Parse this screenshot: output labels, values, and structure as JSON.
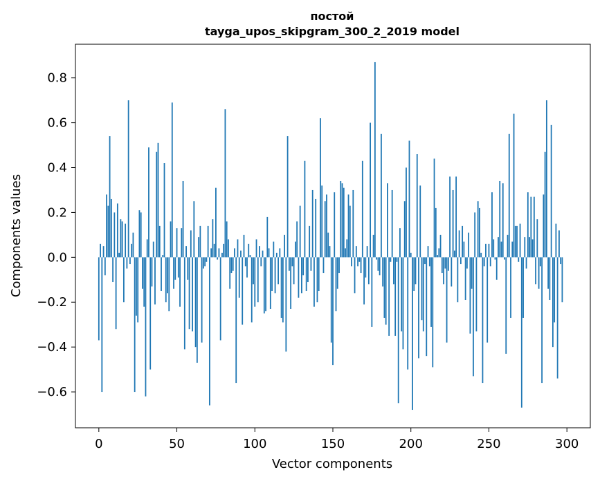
{
  "chart_data": {
    "type": "bar",
    "title": "постой",
    "subtitle": "tayga_upos_skipgram_300_2_2019 model",
    "xlabel": "Vector components",
    "ylabel": "Components values",
    "xlim": [
      -15,
      315
    ],
    "ylim": [
      -0.76,
      0.95
    ],
    "xticks": [
      0,
      50,
      100,
      150,
      200,
      250,
      300
    ],
    "yticks": [
      -0.6,
      -0.4,
      -0.2,
      0.0,
      0.2,
      0.4,
      0.6,
      0.8
    ],
    "ytick_labels": [
      "−0.6",
      "−0.4",
      "−0.2",
      "0.0",
      "0.2",
      "0.4",
      "0.6",
      "0.8"
    ],
    "bar_color": "#1f77b4",
    "grid": false,
    "legend": "none",
    "values": [
      -0.37,
      0.06,
      -0.6,
      0.05,
      -0.08,
      0.28,
      0.23,
      0.54,
      0.26,
      -0.11,
      0.2,
      -0.32,
      0.24,
      0.02,
      0.17,
      0.16,
      -0.2,
      0.15,
      -0.05,
      0.7,
      -0.03,
      0.06,
      0.11,
      -0.6,
      -0.26,
      -0.29,
      0.21,
      0.2,
      -0.14,
      -0.22,
      -0.62,
      0.08,
      0.49,
      -0.5,
      -0.13,
      0.07,
      -0.21,
      0.47,
      0.51,
      0.14,
      -0.15,
      0.01,
      0.42,
      -0.2,
      -0.16,
      -0.24,
      0.16,
      0.69,
      -0.14,
      -0.1,
      0.13,
      -0.09,
      -0.22,
      0.13,
      0.34,
      -0.41,
      0.05,
      -0.1,
      -0.32,
      0.12,
      -0.33,
      0.25,
      -0.4,
      -0.47,
      0.09,
      0.14,
      -0.38,
      -0.05,
      -0.04,
      -0.02,
      0.14,
      -0.66,
      0.04,
      0.17,
      0.06,
      0.31,
      -0.01,
      0.04,
      -0.37,
      0.02,
      0.06,
      0.66,
      0.16,
      0.08,
      -0.14,
      -0.07,
      -0.06,
      0.04,
      -0.56,
      0.08,
      -0.18,
      0.03,
      -0.3,
      0.1,
      -0.04,
      -0.09,
      0.06,
      0.01,
      -0.29,
      -0.12,
      -0.22,
      0.08,
      -0.2,
      0.05,
      -0.04,
      0.03,
      -0.25,
      -0.24,
      0.18,
      0.04,
      -0.23,
      -0.15,
      0.07,
      -0.16,
      0.02,
      -0.12,
      0.04,
      -0.27,
      -0.29,
      0.1,
      -0.42,
      0.54,
      -0.06,
      -0.23,
      -0.04,
      -0.12,
      0.07,
      0.16,
      -0.18,
      0.23,
      -0.16,
      -0.08,
      0.43,
      -0.15,
      -0.11,
      0.14,
      -0.06,
      0.3,
      -0.22,
      0.26,
      -0.2,
      -0.15,
      0.62,
      0.32,
      -0.07,
      0.25,
      0.28,
      0.11,
      0.05,
      -0.38,
      -0.48,
      0.29,
      -0.24,
      -0.14,
      -0.07,
      0.34,
      0.33,
      0.31,
      0.04,
      0.08,
      0.28,
      0.23,
      -0.04,
      0.3,
      -0.16,
      0.05,
      -0.04,
      -0.02,
      -0.07,
      0.43,
      -0.21,
      -0.09,
      0.05,
      -0.12,
      0.6,
      -0.31,
      0.1,
      0.87,
      -0.01,
      -0.06,
      -0.08,
      0.55,
      -0.13,
      -0.27,
      -0.3,
      0.33,
      -0.35,
      -0.02,
      0.3,
      -0.12,
      -0.35,
      -0.02,
      -0.65,
      0.13,
      -0.33,
      -0.41,
      0.25,
      0.4,
      -0.5,
      0.52,
      0.02,
      -0.68,
      -0.15,
      -0.12,
      0.46,
      -0.45,
      0.32,
      -0.28,
      -0.33,
      -0.03,
      -0.44,
      0.05,
      -0.04,
      -0.31,
      -0.49,
      0.44,
      0.22,
      0.01,
      0.04,
      0.1,
      -0.07,
      -0.12,
      -0.05,
      -0.38,
      -0.06,
      0.36,
      -0.13,
      0.3,
      0.03,
      0.36,
      -0.2,
      0.12,
      -0.03,
      0.14,
      0.07,
      -0.19,
      -0.05,
      0.11,
      -0.34,
      -0.14,
      -0.53,
      0.2,
      -0.33,
      0.25,
      0.22,
      0.02,
      -0.56,
      -0.04,
      0.06,
      -0.38,
      0.06,
      -0.04,
      0.29,
      0.08,
      -0.01,
      -0.1,
      0.09,
      0.34,
      0.07,
      0.33,
      -0.01,
      -0.43,
      0.1,
      0.55,
      -0.27,
      0.07,
      0.64,
      0.14,
      0.14,
      -0.02,
      0.15,
      -0.67,
      -0.27,
      0.09,
      -0.05,
      0.29,
      0.09,
      0.27,
      0.08,
      0.27,
      -0.12,
      0.17,
      -0.14,
      -0.04,
      -0.56,
      0.28,
      0.47,
      0.7,
      -0.14,
      -0.19,
      0.59,
      -0.4,
      -0.29,
      0.15,
      -0.54,
      0.12,
      -0.03,
      -0.2
    ]
  }
}
